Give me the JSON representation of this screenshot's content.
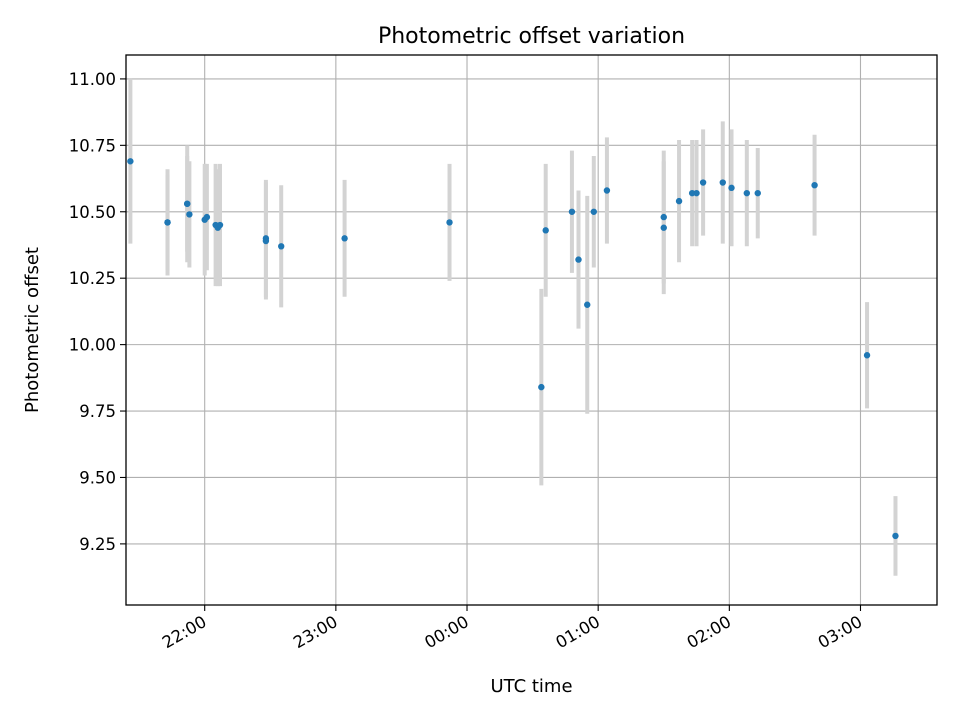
{
  "chart_data": {
    "type": "scatter",
    "title": "Photometric offset variation",
    "xlabel": "UTC time",
    "ylabel": "Photometric offset",
    "x_axis": {
      "unit": "UTC time",
      "start_time": "21:00",
      "range": [
        "21:24",
        "03:35"
      ],
      "ticks": [
        "22:00",
        "23:00",
        "00:00",
        "01:00",
        "02:00",
        "03:00"
      ]
    },
    "y_axis": {
      "range": [
        9.02,
        11.09
      ],
      "ticks": [
        "9.25",
        "9.50",
        "9.75",
        "10.00",
        "10.25",
        "10.50",
        "10.75",
        "11.00"
      ]
    },
    "grid": true,
    "colors": {
      "point": "#1f77b4",
      "errorbar": "#d3d3d3",
      "grid": "#b0b0b0"
    },
    "points": [
      {
        "time": "21:26",
        "y": 10.69,
        "err": 0.31
      },
      {
        "time": "21:43",
        "y": 10.46,
        "err": 0.2
      },
      {
        "time": "21:43",
        "y": 10.46,
        "err": 0.18
      },
      {
        "time": "21:52",
        "y": 10.53,
        "err": 0.22
      },
      {
        "time": "21:52",
        "y": 10.53,
        "err": 0.18
      },
      {
        "time": "21:53",
        "y": 10.49,
        "err": 0.2
      },
      {
        "time": "22:00",
        "y": 10.47,
        "err": 0.21
      },
      {
        "time": "22:01",
        "y": 10.48,
        "err": 0.2
      },
      {
        "time": "22:05",
        "y": 10.45,
        "err": 0.23
      },
      {
        "time": "22:06",
        "y": 10.44,
        "err": 0.22
      },
      {
        "time": "22:07",
        "y": 10.45,
        "err": 0.23
      },
      {
        "time": "22:28",
        "y": 10.4,
        "err": 0.22
      },
      {
        "time": "22:28",
        "y": 10.39,
        "err": 0.22
      },
      {
        "time": "22:35",
        "y": 10.37,
        "err": 0.23
      },
      {
        "time": "23:04",
        "y": 10.4,
        "err": 0.22
      },
      {
        "time": "23:52",
        "y": 10.46,
        "err": 0.22
      },
      {
        "time": "00:34",
        "y": 9.84,
        "err": 0.37
      },
      {
        "time": "00:36",
        "y": 10.43,
        "err": 0.25
      },
      {
        "time": "00:48",
        "y": 10.5,
        "err": 0.23
      },
      {
        "time": "00:51",
        "y": 10.32,
        "err": 0.26
      },
      {
        "time": "00:55",
        "y": 10.15,
        "err": 0.41
      },
      {
        "time": "00:58",
        "y": 10.5,
        "err": 0.21
      },
      {
        "time": "01:04",
        "y": 10.58,
        "err": 0.2
      },
      {
        "time": "01:30",
        "y": 10.44,
        "err": 0.25
      },
      {
        "time": "01:30",
        "y": 10.48,
        "err": 0.25
      },
      {
        "time": "01:37",
        "y": 10.54,
        "err": 0.23
      },
      {
        "time": "01:43",
        "y": 10.57,
        "err": 0.2
      },
      {
        "time": "01:45",
        "y": 10.57,
        "err": 0.2
      },
      {
        "time": "01:48",
        "y": 10.61,
        "err": 0.2
      },
      {
        "time": "01:57",
        "y": 10.61,
        "err": 0.23
      },
      {
        "time": "02:01",
        "y": 10.59,
        "err": 0.22
      },
      {
        "time": "02:08",
        "y": 10.57,
        "err": 0.2
      },
      {
        "time": "02:13",
        "y": 10.57,
        "err": 0.17
      },
      {
        "time": "02:39",
        "y": 10.6,
        "err": 0.19
      },
      {
        "time": "03:03",
        "y": 9.96,
        "err": 0.2
      },
      {
        "time": "03:16",
        "y": 9.28,
        "err": 0.15
      }
    ]
  }
}
